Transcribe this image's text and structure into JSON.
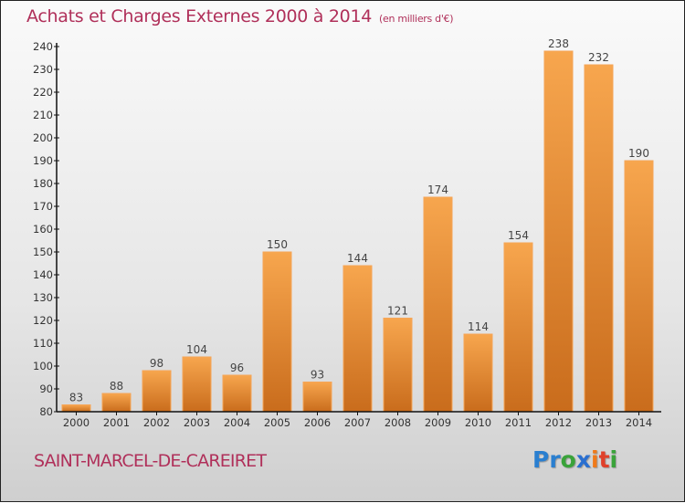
{
  "chart_data": {
    "type": "bar",
    "title": "Achats et Charges Externes 2000 à 2014",
    "subtitle": "(en milliers d'€)",
    "xlabel": "",
    "ylabel": "",
    "categories": [
      "2000",
      "2001",
      "2002",
      "2003",
      "2004",
      "2005",
      "2006",
      "2007",
      "2008",
      "2009",
      "2010",
      "2011",
      "2012",
      "2013",
      "2014"
    ],
    "values": [
      83,
      88,
      98,
      104,
      96,
      150,
      93,
      144,
      121,
      174,
      114,
      154,
      238,
      232,
      190
    ],
    "ylim": [
      80,
      240
    ],
    "yticks": [
      80,
      90,
      100,
      110,
      120,
      130,
      140,
      150,
      160,
      170,
      180,
      190,
      200,
      210,
      220,
      230,
      240
    ],
    "grid": false,
    "bar_color_top": "#f7a64e",
    "bar_color_bottom": "#c96c1c",
    "data_labels": true
  },
  "footer": {
    "city": "SAINT-MARCEL-DE-CAREIRET",
    "logo_letters": [
      {
        "ch": "P",
        "color": "#2a7fd0"
      },
      {
        "ch": "r",
        "color": "#2a7fd0"
      },
      {
        "ch": "o",
        "color": "#3aa33a"
      },
      {
        "ch": "x",
        "color": "#2a6fd0"
      },
      {
        "ch": "i",
        "color": "#f07a1a"
      },
      {
        "ch": "t",
        "color": "#e0402a"
      },
      {
        "ch": "i",
        "color": "#3aa33a"
      }
    ]
  }
}
